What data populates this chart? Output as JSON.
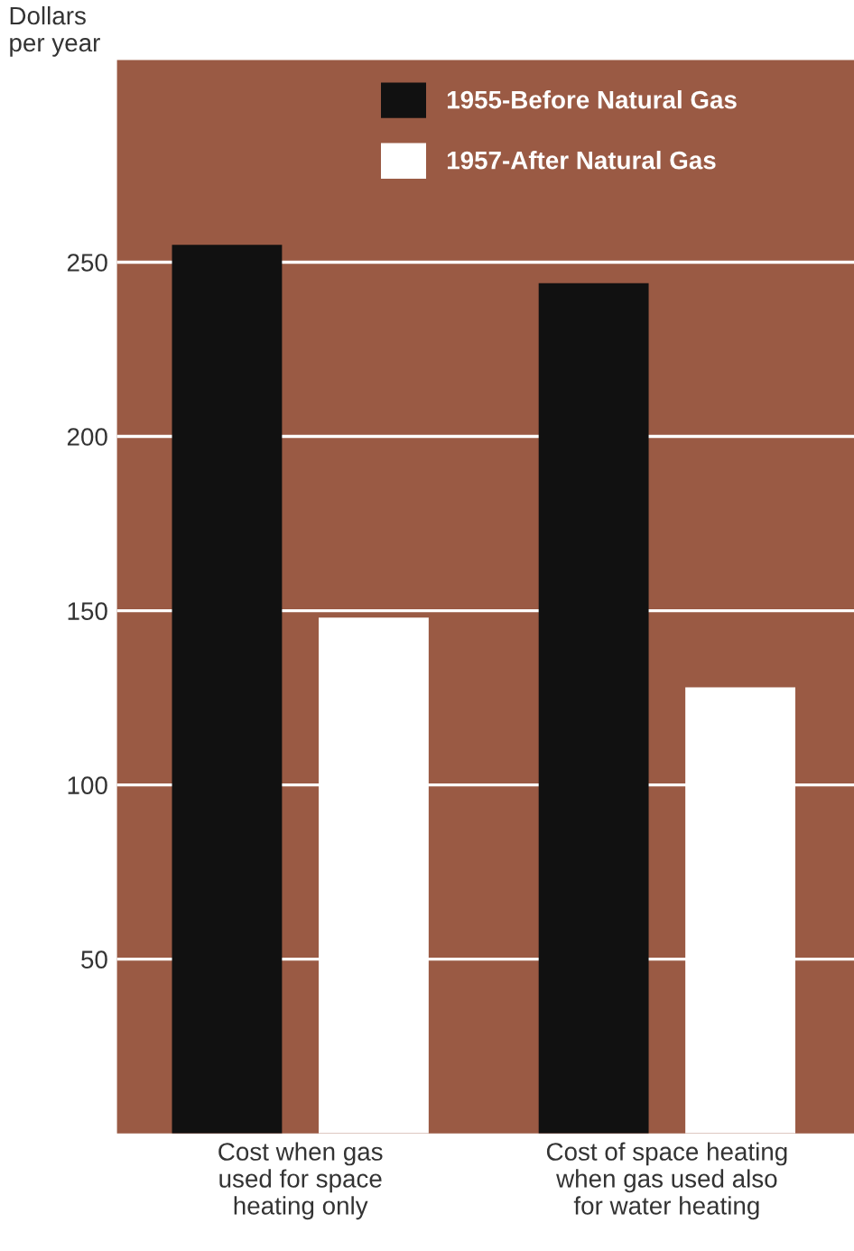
{
  "chart_data": {
    "type": "bar",
    "ylabel": "Dollars\nper year",
    "categories": [
      "Cost when gas\nused for space\nheating only",
      "Cost of space heating\nwhen gas used also\nfor water heating"
    ],
    "series": [
      {
        "name": "1955-Before Natural Gas",
        "color": "#111111",
        "values": [
          255,
          244
        ]
      },
      {
        "name": "1957-After Natural Gas",
        "color": "#ffffff",
        "values": [
          148,
          128
        ]
      }
    ],
    "ylim": [
      0,
      308
    ],
    "yticks": [
      50,
      100,
      150,
      200,
      250
    ],
    "grid": "y",
    "legend": "top"
  }
}
